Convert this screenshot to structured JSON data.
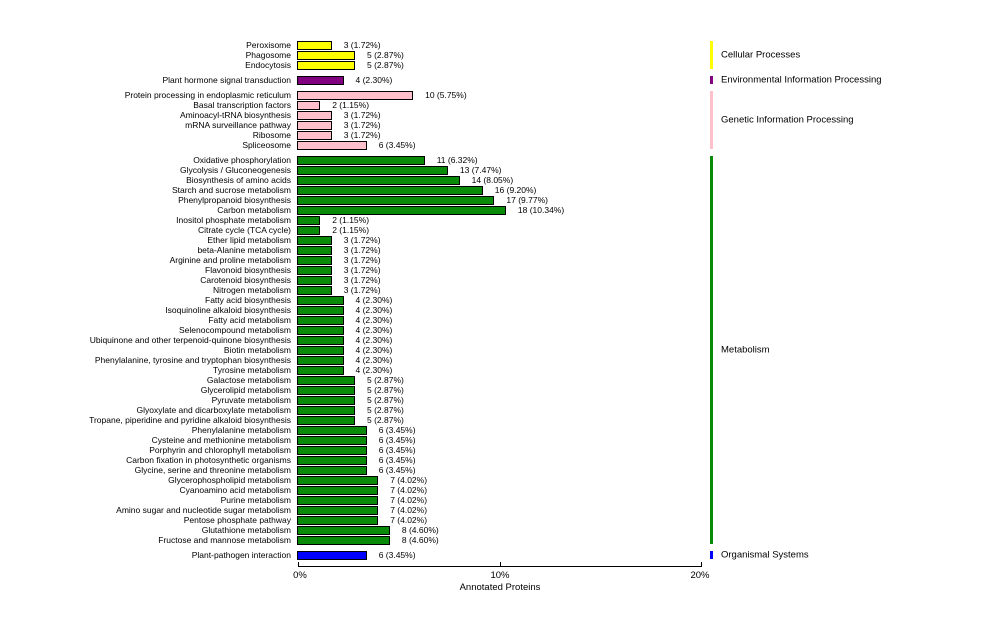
{
  "chart_data": {
    "type": "bar",
    "orientation": "horizontal",
    "title": "",
    "xlabel": "Annotated Proteins",
    "xlim": [
      0,
      20
    ],
    "x_ticks": [
      "0%",
      "10%",
      "20%"
    ],
    "grid": false,
    "legend_position": "right",
    "value_label_format": "count (percent%)",
    "groups": [
      {
        "name": "Cellular Processes",
        "color": "#FFFF00",
        "items": [
          {
            "label": "Peroxisome",
            "count": 3,
            "pct": 1.72
          },
          {
            "label": "Phagosome",
            "count": 5,
            "pct": 2.87
          },
          {
            "label": "Endocytosis",
            "count": 5,
            "pct": 2.87
          }
        ]
      },
      {
        "name": "Environmental Information Processing",
        "color": "#800080",
        "items": [
          {
            "label": "Plant hormone signal transduction",
            "count": 4,
            "pct": 2.3
          }
        ]
      },
      {
        "name": "Genetic Information Processing",
        "color": "#FFC0CB",
        "items": [
          {
            "label": "Protein processing in endoplasmic reticulum",
            "count": 10,
            "pct": 5.75
          },
          {
            "label": "Basal transcription factors",
            "count": 2,
            "pct": 1.15
          },
          {
            "label": "Aminoacyl-tRNA biosynthesis",
            "count": 3,
            "pct": 1.72
          },
          {
            "label": "mRNA surveillance pathway",
            "count": 3,
            "pct": 1.72
          },
          {
            "label": "Ribosome",
            "count": 3,
            "pct": 1.72
          },
          {
            "label": "Spliceosome",
            "count": 6,
            "pct": 3.45
          }
        ]
      },
      {
        "name": "Metabolism",
        "color": "#098B09",
        "items": [
          {
            "label": "Oxidative phosphorylation",
            "count": 11,
            "pct": 6.32
          },
          {
            "label": "Glycolysis / Gluconeogenesis",
            "count": 13,
            "pct": 7.47
          },
          {
            "label": "Biosynthesis of amino acids",
            "count": 14,
            "pct": 8.05
          },
          {
            "label": "Starch and sucrose metabolism",
            "count": 16,
            "pct": 9.2
          },
          {
            "label": "Phenylpropanoid biosynthesis",
            "count": 17,
            "pct": 9.77
          },
          {
            "label": "Carbon metabolism",
            "count": 18,
            "pct": 10.34
          },
          {
            "label": "Inositol phosphate metabolism",
            "count": 2,
            "pct": 1.15
          },
          {
            "label": "Citrate cycle (TCA cycle)",
            "count": 2,
            "pct": 1.15
          },
          {
            "label": "Ether lipid metabolism",
            "count": 3,
            "pct": 1.72
          },
          {
            "label": "beta-Alanine metabolism",
            "count": 3,
            "pct": 1.72
          },
          {
            "label": "Arginine and proline metabolism",
            "count": 3,
            "pct": 1.72
          },
          {
            "label": "Flavonoid biosynthesis",
            "count": 3,
            "pct": 1.72
          },
          {
            "label": "Carotenoid biosynthesis",
            "count": 3,
            "pct": 1.72
          },
          {
            "label": "Nitrogen metabolism",
            "count": 3,
            "pct": 1.72
          },
          {
            "label": "Fatty acid biosynthesis",
            "count": 4,
            "pct": 2.3
          },
          {
            "label": "Isoquinoline alkaloid biosynthesis",
            "count": 4,
            "pct": 2.3
          },
          {
            "label": "Fatty acid metabolism",
            "count": 4,
            "pct": 2.3
          },
          {
            "label": "Selenocompound metabolism",
            "count": 4,
            "pct": 2.3
          },
          {
            "label": "Ubiquinone and other terpenoid-quinone biosynthesis",
            "count": 4,
            "pct": 2.3
          },
          {
            "label": "Biotin metabolism",
            "count": 4,
            "pct": 2.3
          },
          {
            "label": "Phenylalanine, tyrosine and tryptophan biosynthesis",
            "count": 4,
            "pct": 2.3
          },
          {
            "label": "Tyrosine metabolism",
            "count": 4,
            "pct": 2.3
          },
          {
            "label": "Galactose metabolism",
            "count": 5,
            "pct": 2.87
          },
          {
            "label": "Glycerolipid metabolism",
            "count": 5,
            "pct": 2.87
          },
          {
            "label": "Pyruvate metabolism",
            "count": 5,
            "pct": 2.87
          },
          {
            "label": "Glyoxylate and dicarboxylate metabolism",
            "count": 5,
            "pct": 2.87
          },
          {
            "label": "Tropane, piperidine and pyridine alkaloid biosynthesis",
            "count": 5,
            "pct": 2.87
          },
          {
            "label": "Phenylalanine metabolism",
            "count": 6,
            "pct": 3.45
          },
          {
            "label": "Cysteine and methionine metabolism",
            "count": 6,
            "pct": 3.45
          },
          {
            "label": "Porphyrin and chlorophyll metabolism",
            "count": 6,
            "pct": 3.45
          },
          {
            "label": "Carbon fixation in photosynthetic organisms",
            "count": 6,
            "pct": 3.45
          },
          {
            "label": "Glycine, serine and threonine metabolism",
            "count": 6,
            "pct": 3.45
          },
          {
            "label": "Glycerophospholipid metabolism",
            "count": 7,
            "pct": 4.02
          },
          {
            "label": "Cyanoamino acid metabolism",
            "count": 7,
            "pct": 4.02
          },
          {
            "label": "Purine metabolism",
            "count": 7,
            "pct": 4.02
          },
          {
            "label": "Amino sugar and nucleotide sugar metabolism",
            "count": 7,
            "pct": 4.02
          },
          {
            "label": "Pentose phosphate pathway",
            "count": 7,
            "pct": 4.02
          },
          {
            "label": "Glutathione metabolism",
            "count": 8,
            "pct": 4.6
          },
          {
            "label": "Fructose and mannose metabolism",
            "count": 8,
            "pct": 4.6
          }
        ]
      },
      {
        "name": "Organismal Systems",
        "color": "#0000FF",
        "items": [
          {
            "label": "Plant-pathogen interaction",
            "count": 6,
            "pct": 3.45
          }
        ]
      }
    ]
  }
}
